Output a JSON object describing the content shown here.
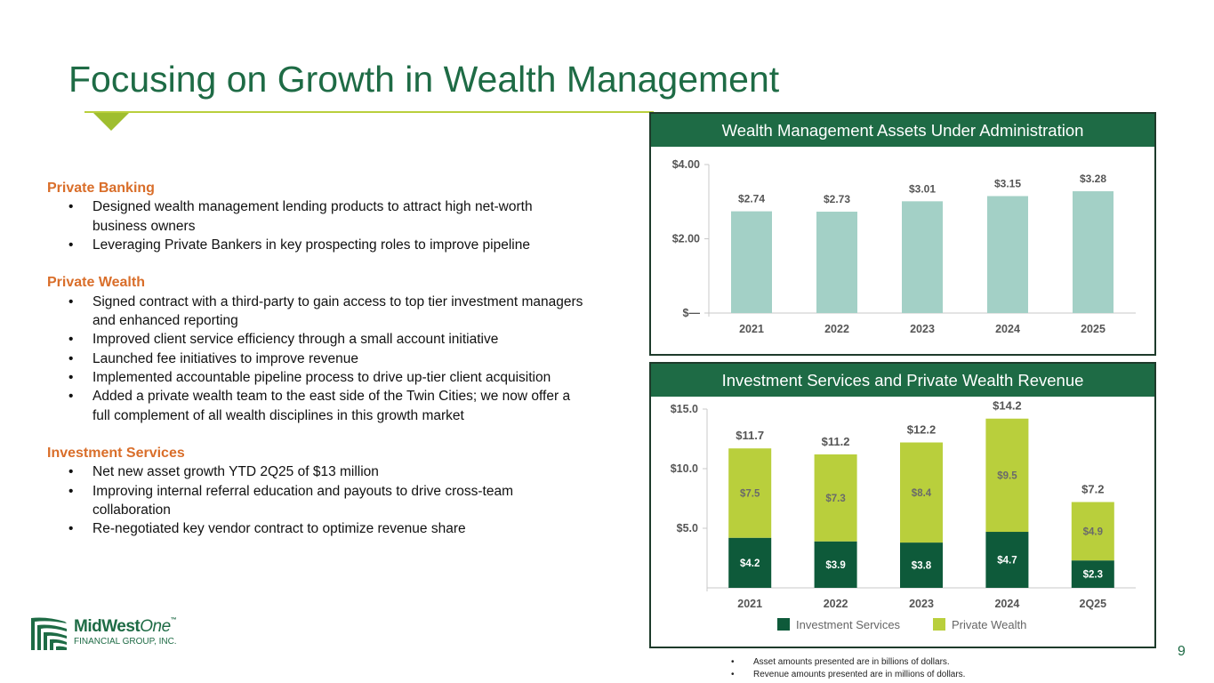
{
  "page": {
    "title": "Focusing on Growth in Wealth Management",
    "page_number": "9"
  },
  "sections": [
    {
      "heading": "Private Banking",
      "bullets": [
        "Designed wealth management lending products to attract high net-worth business owners",
        "Leveraging Private Bankers in key prospecting roles to improve pipeline"
      ]
    },
    {
      "heading": "Private Wealth",
      "bullets": [
        "Signed contract with a third-party to gain access to top tier investment managers and enhanced reporting",
        "Improved client service efficiency through a small account initiative",
        "Launched fee initiatives to improve revenue",
        "Implemented accountable pipeline process to drive up-tier client acquisition",
        "Added a private wealth team to the east side of the Twin Cities; we now offer a full complement of all wealth disciplines in this growth market"
      ]
    },
    {
      "heading": "Investment Services",
      "bullets": [
        "Net new asset growth YTD 2Q25 of $13 million",
        "Improving internal referral education and payouts to drive cross-team collaboration",
        "Re-negotiated key vendor contract to optimize revenue share"
      ]
    }
  ],
  "logo": {
    "name_part1": "MidWest",
    "name_part2": "One",
    "tm": "™",
    "subtitle": "FINANCIAL GROUP, INC."
  },
  "footnotes": [
    "Asset amounts presented are in billions of dollars.",
    "Revenue amounts presented are in millions of dollars."
  ],
  "colors": {
    "title_green": "#1e6b45",
    "section_orange": "#d96e2a",
    "aum_bar": "#a3d0c6",
    "investment_services": "#0e5a3a",
    "private_wealth": "#b9cf3c"
  },
  "chart_data": [
    {
      "type": "bar",
      "title": "Wealth Management Assets Under Administration",
      "categories": [
        "2021",
        "2022",
        "2023",
        "2024",
        "2025"
      ],
      "values": [
        2.74,
        2.73,
        3.01,
        3.15,
        3.28
      ],
      "data_labels": [
        "$2.74",
        "$2.73",
        "$3.01",
        "$3.15",
        "$3.28"
      ],
      "ylim": [
        0,
        4
      ],
      "yticks": [
        0,
        2,
        4
      ],
      "ytick_labels": [
        "$—",
        "$2.00",
        "$4.00"
      ],
      "xlabel": "",
      "ylabel": "",
      "grid": false
    },
    {
      "type": "bar",
      "stacked": true,
      "title": "Investment Services and Private Wealth Revenue",
      "categories": [
        "2021",
        "2022",
        "2023",
        "2024",
        "2Q25"
      ],
      "series": [
        {
          "name": "Investment Services",
          "values": [
            4.2,
            3.9,
            3.8,
            4.7,
            2.3
          ],
          "labels": [
            "$4.2",
            "$3.9",
            "$3.8",
            "$4.7",
            "$2.3"
          ]
        },
        {
          "name": "Private Wealth",
          "values": [
            7.5,
            7.3,
            8.4,
            9.5,
            4.9
          ],
          "labels": [
            "$7.5",
            "$7.3",
            "$8.4",
            "$9.5",
            "$4.9"
          ]
        }
      ],
      "totals": [
        11.7,
        11.2,
        12.2,
        14.2,
        7.2
      ],
      "total_labels": [
        "$11.7",
        "$11.2",
        "$12.2",
        "$14.2",
        "$7.2"
      ],
      "ylim": [
        0,
        15
      ],
      "yticks": [
        5,
        10,
        15
      ],
      "ytick_labels": [
        "$5.0",
        "$10.0",
        "$15.0"
      ],
      "legend_position": "bottom",
      "xlabel": "",
      "ylabel": "",
      "grid": false
    }
  ]
}
